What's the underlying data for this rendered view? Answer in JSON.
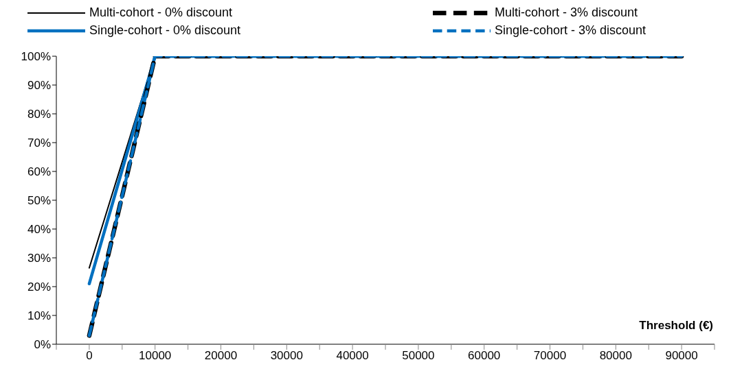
{
  "chart_data": {
    "type": "line",
    "xlabel": "Threshold (€)",
    "x": [
      0,
      10000,
      90000
    ],
    "series": [
      {
        "name": "Multi-cohort - 0% discount",
        "color": "#000000",
        "values": [
          26.5,
          100,
          100
        ],
        "line_style": "solid"
      },
      {
        "name": "Single-cohort - 0% discount",
        "color": "#0070c0",
        "values": [
          21,
          100,
          100
        ],
        "line_style": "solid"
      },
      {
        "name": "Multi-cohort - 3% discount",
        "color": "#000000",
        "values": [
          3,
          100,
          100
        ],
        "line_style": "dashed"
      },
      {
        "name": "Single-cohort - 3% discount",
        "color": "#0070c0",
        "values": [
          3,
          100,
          100
        ],
        "line_style": "dashed"
      }
    ],
    "xlim": [
      -5000,
      95000
    ],
    "xticks": [
      {
        "value": -5000,
        "label": null
      },
      0,
      {
        "value": 5000,
        "label": null
      },
      10000,
      {
        "value": 15000,
        "label": null
      },
      20000,
      {
        "value": 25000,
        "label": null
      },
      30000,
      {
        "value": 35000,
        "label": null
      },
      40000,
      {
        "value": 45000,
        "label": null
      },
      50000,
      {
        "value": 55000,
        "label": null
      },
      60000,
      {
        "value": 65000,
        "label": null
      },
      70000,
      {
        "value": 75000,
        "label": null
      },
      80000,
      {
        "value": 85000,
        "label": null
      },
      90000,
      {
        "value": 95000,
        "label": null
      }
    ],
    "ylim": [
      0,
      100
    ],
    "yticks": [
      {
        "value": 0,
        "label": "0%"
      },
      {
        "value": 10,
        "label": "10%"
      },
      {
        "value": 20,
        "label": "20%"
      },
      {
        "value": 30,
        "label": "30%"
      },
      {
        "value": 40,
        "label": "40%"
      },
      {
        "value": 50,
        "label": "50%"
      },
      {
        "value": 60,
        "label": "60%"
      },
      {
        "value": 70,
        "label": "70%"
      },
      {
        "value": 80,
        "label": "80%"
      },
      {
        "value": 90,
        "label": "90%"
      },
      {
        "value": 100,
        "label": "100%"
      }
    ],
    "grid": false,
    "legend": "top",
    "marker": "none"
  }
}
